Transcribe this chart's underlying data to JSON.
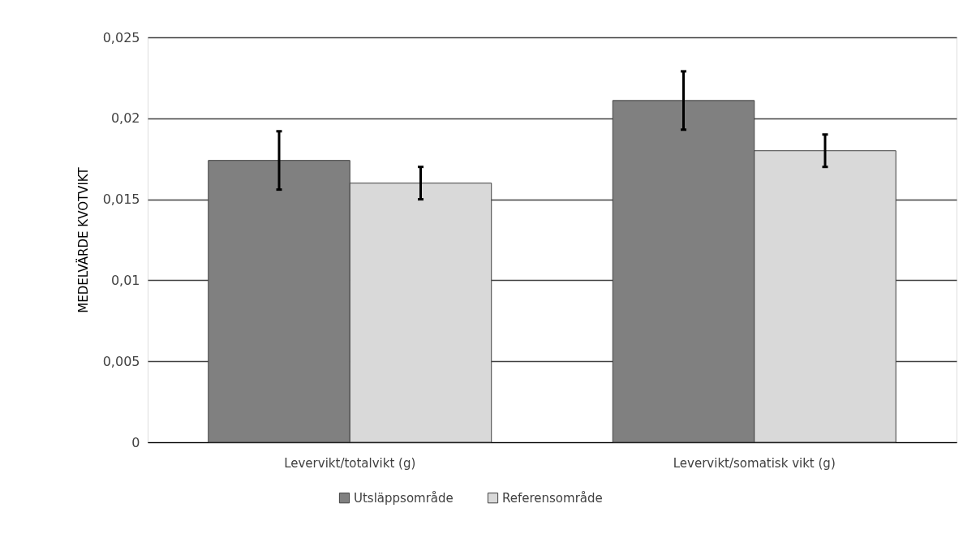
{
  "chart_data": {
    "type": "bar",
    "ylabel": "MEDELVÄRDE KVOTVIKT",
    "categories": [
      "Levervikt/totalvikt (g)",
      "Levervikt/somatisk vikt (g)"
    ],
    "series": [
      {
        "name": "Utsläppsområde",
        "color": "#808080",
        "values": [
          0.0174,
          0.0211
        ],
        "errors": [
          0.0018,
          0.0018
        ]
      },
      {
        "name": "Referensområde",
        "color": "#d9d9d9",
        "values": [
          0.016,
          0.018
        ],
        "errors": [
          0.001,
          0.001
        ]
      }
    ],
    "ylim": [
      0,
      0.025
    ],
    "yticks": [
      0,
      {
        "value": 0.005,
        "label": "0,005"
      },
      {
        "value": 0.01,
        "label": "0,01"
      },
      {
        "value": 0.015,
        "label": "0,015"
      },
      {
        "value": 0.02,
        "label": "0,02"
      },
      {
        "value": 0.025,
        "label": "0,025"
      }
    ],
    "grid": "y",
    "legend": "bottom"
  }
}
